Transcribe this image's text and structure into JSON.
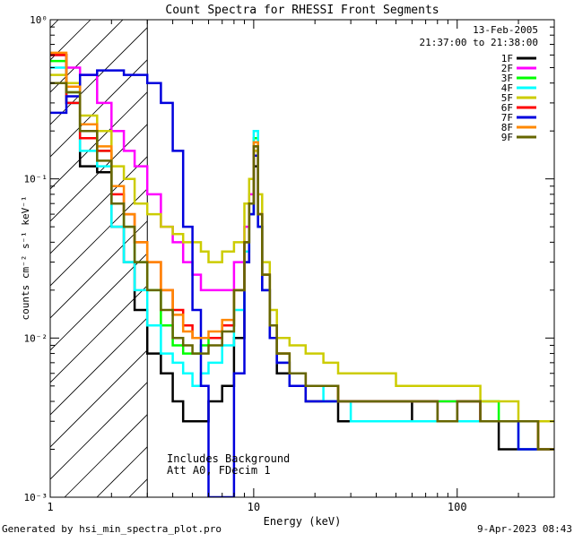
{
  "chart_data": {
    "type": "line",
    "title": "Count Spectra for RHESSI Front Segments",
    "xlabel": "Energy (keV)",
    "ylabel": "counts cm⁻² s⁻¹ keV⁻¹",
    "xscale": "log",
    "yscale": "log",
    "xlim": [
      1,
      300
    ],
    "ylim": [
      0.001,
      1.0
    ],
    "x_ticks": [
      {
        "value": 1,
        "label": "1"
      },
      {
        "value": 10,
        "label": "10"
      },
      {
        "value": 100,
        "label": "100"
      }
    ],
    "y_ticks": [
      {
        "value": 0.001,
        "label": "10⁻³"
      },
      {
        "value": 0.01,
        "label": "10⁻²"
      },
      {
        "value": 0.1,
        "label": "10⁻¹"
      },
      {
        "value": 1,
        "label": "10⁰"
      }
    ],
    "legend_position": "top-right",
    "date": "13-Feb-2005",
    "time_range": "21:37:00 to 21:38:00",
    "hatched_region_keV": [
      1,
      3
    ],
    "annotations": [
      "Includes Background",
      "Att A0, FDecim 1"
    ],
    "series": [
      {
        "name": "1F",
        "color": "#000000",
        "x": [
          1.0,
          1.2,
          1.4,
          1.7,
          2.0,
          2.3,
          2.6,
          3.0,
          3.5,
          4.0,
          4.5,
          5.0,
          5.5,
          6.0,
          7.0,
          8.0,
          9.0,
          9.5,
          10.0,
          10.5,
          11.0,
          12.0,
          13.0,
          15.0,
          18.0,
          22.0,
          26.0,
          30.0,
          40.0,
          50.0,
          60.0,
          80.0,
          100.0,
          130.0,
          160.0,
          200.0,
          250.0,
          300.0
        ],
        "y": [
          0.6,
          0.3,
          0.12,
          0.11,
          0.05,
          0.03,
          0.015,
          0.008,
          0.006,
          0.004,
          0.003,
          0.003,
          0.003,
          0.004,
          0.005,
          0.01,
          0.03,
          0.06,
          0.12,
          0.05,
          0.02,
          0.01,
          0.006,
          0.005,
          0.004,
          0.004,
          0.003,
          0.003,
          0.003,
          0.003,
          0.004,
          0.003,
          0.004,
          0.003,
          0.002,
          0.002,
          0.002,
          0.002
        ]
      },
      {
        "name": "2F",
        "color": "#ff00ff",
        "x": [
          1.0,
          1.2,
          1.4,
          1.7,
          2.0,
          2.3,
          2.6,
          3.0,
          3.5,
          4.0,
          4.5,
          5.0,
          5.5,
          6.0,
          7.0,
          8.0,
          9.0,
          9.5,
          10.0,
          10.5,
          11.0,
          12.0,
          13.0,
          15.0,
          18.0,
          22.0,
          26.0,
          30.0,
          40.0,
          50.0,
          60.0,
          80.0,
          100.0,
          130.0,
          160.0,
          200.0,
          250.0,
          300.0
        ],
        "y": [
          0.6,
          0.5,
          0.45,
          0.3,
          0.2,
          0.15,
          0.12,
          0.08,
          0.05,
          0.04,
          0.03,
          0.025,
          0.02,
          0.02,
          0.02,
          0.03,
          0.05,
          0.08,
          0.15,
          0.06,
          0.02,
          0.01,
          0.007,
          0.006,
          0.005,
          0.005,
          0.004,
          0.004,
          0.004,
          0.004,
          0.004,
          0.004,
          0.004,
          0.003,
          0.003,
          0.003,
          0.002,
          0.002
        ]
      },
      {
        "name": "3F",
        "color": "#00ff00",
        "x": [
          1.0,
          1.2,
          1.4,
          1.7,
          2.0,
          2.3,
          2.6,
          3.0,
          3.5,
          4.0,
          4.5,
          5.0,
          5.5,
          6.0,
          7.0,
          8.0,
          9.0,
          9.5,
          10.0,
          10.5,
          11.0,
          12.0,
          13.0,
          15.0,
          18.0,
          22.0,
          26.0,
          30.0,
          40.0,
          50.0,
          60.0,
          80.0,
          100.0,
          130.0,
          160.0,
          200.0,
          250.0,
          300.0
        ],
        "y": [
          0.55,
          0.35,
          0.2,
          0.15,
          0.07,
          0.05,
          0.03,
          0.02,
          0.012,
          0.009,
          0.008,
          0.008,
          0.009,
          0.01,
          0.012,
          0.02,
          0.04,
          0.07,
          0.18,
          0.06,
          0.025,
          0.012,
          0.008,
          0.006,
          0.005,
          0.005,
          0.004,
          0.004,
          0.004,
          0.004,
          0.004,
          0.004,
          0.004,
          0.004,
          0.003,
          0.003,
          0.002,
          0.002
        ]
      },
      {
        "name": "4F",
        "color": "#00ffff",
        "x": [
          1.0,
          1.2,
          1.4,
          1.7,
          2.0,
          2.3,
          2.6,
          3.0,
          3.5,
          4.0,
          4.5,
          5.0,
          5.5,
          6.0,
          7.0,
          8.0,
          9.0,
          9.5,
          10.0,
          10.5,
          11.0,
          12.0,
          13.0,
          15.0,
          18.0,
          22.0,
          26.0,
          30.0,
          40.0,
          50.0,
          60.0,
          80.0,
          100.0,
          130.0,
          160.0,
          200.0,
          250.0,
          300.0
        ],
        "y": [
          0.5,
          0.3,
          0.15,
          0.12,
          0.05,
          0.03,
          0.02,
          0.012,
          0.008,
          0.007,
          0.006,
          0.005,
          0.006,
          0.007,
          0.009,
          0.015,
          0.035,
          0.06,
          0.2,
          0.05,
          0.02,
          0.01,
          0.007,
          0.005,
          0.005,
          0.004,
          0.004,
          0.003,
          0.003,
          0.003,
          0.003,
          0.003,
          0.003,
          0.003,
          0.003,
          0.002,
          0.002,
          0.002
        ]
      },
      {
        "name": "5F",
        "color": "#cccc00",
        "x": [
          1.0,
          1.2,
          1.4,
          1.7,
          2.0,
          2.3,
          2.6,
          3.0,
          3.5,
          4.0,
          4.5,
          5.0,
          5.5,
          6.0,
          7.0,
          8.0,
          9.0,
          9.5,
          10.0,
          10.5,
          11.0,
          12.0,
          13.0,
          15.0,
          18.0,
          22.0,
          26.0,
          30.0,
          40.0,
          50.0,
          60.0,
          80.0,
          100.0,
          130.0,
          160.0,
          200.0,
          250.0,
          300.0
        ],
        "y": [
          0.45,
          0.4,
          0.25,
          0.2,
          0.12,
          0.1,
          0.07,
          0.06,
          0.05,
          0.045,
          0.04,
          0.04,
          0.035,
          0.03,
          0.035,
          0.04,
          0.07,
          0.1,
          0.15,
          0.08,
          0.03,
          0.015,
          0.01,
          0.009,
          0.008,
          0.007,
          0.006,
          0.006,
          0.006,
          0.005,
          0.005,
          0.005,
          0.005,
          0.004,
          0.004,
          0.003,
          0.003,
          0.003
        ]
      },
      {
        "name": "6F",
        "color": "#ff0000",
        "x": [
          1.0,
          1.2,
          1.4,
          1.7,
          2.0,
          2.3,
          2.6,
          3.0,
          3.5,
          4.0,
          4.5,
          5.0,
          5.5,
          6.0,
          7.0,
          8.0,
          9.0,
          9.5,
          10.0,
          10.5,
          11.0,
          12.0,
          13.0,
          15.0,
          18.0,
          22.0,
          26.0,
          30.0,
          40.0,
          50.0,
          60.0,
          80.0,
          100.0,
          130.0,
          160.0,
          200.0,
          250.0,
          300.0
        ],
        "y": [
          0.6,
          0.3,
          0.18,
          0.15,
          0.08,
          0.06,
          0.04,
          0.03,
          0.02,
          0.015,
          0.012,
          0.01,
          0.01,
          0.01,
          0.012,
          0.02,
          0.04,
          0.07,
          0.16,
          0.06,
          0.025,
          0.012,
          0.008,
          0.006,
          0.005,
          0.005,
          0.004,
          0.004,
          0.004,
          0.004,
          0.004,
          0.003,
          0.004,
          0.003,
          0.003,
          0.003,
          0.002,
          0.002
        ]
      },
      {
        "name": "7F",
        "color": "#0000dd",
        "x": [
          1.0,
          1.2,
          1.4,
          1.7,
          2.0,
          2.3,
          2.6,
          3.0,
          3.5,
          4.0,
          4.5,
          5.0,
          5.5,
          6.0,
          7.0,
          8.0,
          9.0,
          9.5,
          10.0,
          10.5,
          11.0,
          12.0,
          13.0,
          15.0,
          18.0,
          22.0,
          26.0,
          30.0,
          40.0,
          50.0,
          60.0,
          80.0,
          100.0,
          130.0,
          160.0,
          200.0,
          250.0,
          300.0
        ],
        "y": [
          0.26,
          0.33,
          0.45,
          0.48,
          0.48,
          0.45,
          0.45,
          0.4,
          0.3,
          0.15,
          0.05,
          0.015,
          0.005,
          0.001,
          0.001,
          0.006,
          0.03,
          0.06,
          0.14,
          0.05,
          0.02,
          0.01,
          0.007,
          0.005,
          0.004,
          0.004,
          0.004,
          0.004,
          0.004,
          0.004,
          0.004,
          0.003,
          0.004,
          0.003,
          0.003,
          0.002,
          0.002,
          0.002
        ]
      },
      {
        "name": "8F",
        "color": "#ff8800",
        "x": [
          1.0,
          1.2,
          1.4,
          1.7,
          2.0,
          2.3,
          2.6,
          3.0,
          3.5,
          4.0,
          4.5,
          5.0,
          5.5,
          6.0,
          7.0,
          8.0,
          9.0,
          9.5,
          10.0,
          10.5,
          11.0,
          12.0,
          13.0,
          15.0,
          18.0,
          22.0,
          26.0,
          30.0,
          40.0,
          50.0,
          60.0,
          80.0,
          100.0,
          130.0,
          160.0,
          200.0,
          250.0,
          300.0
        ],
        "y": [
          0.62,
          0.38,
          0.22,
          0.16,
          0.09,
          0.06,
          0.04,
          0.03,
          0.02,
          0.014,
          0.011,
          0.01,
          0.01,
          0.011,
          0.013,
          0.02,
          0.04,
          0.07,
          0.17,
          0.06,
          0.025,
          0.012,
          0.008,
          0.006,
          0.005,
          0.005,
          0.004,
          0.004,
          0.004,
          0.004,
          0.004,
          0.003,
          0.004,
          0.003,
          0.003,
          0.003,
          0.002,
          0.002
        ]
      },
      {
        "name": "9F",
        "color": "#666600",
        "x": [
          1.0,
          1.2,
          1.4,
          1.7,
          2.0,
          2.3,
          2.6,
          3.0,
          3.5,
          4.0,
          4.5,
          5.0,
          5.5,
          6.0,
          7.0,
          8.0,
          9.0,
          9.5,
          10.0,
          10.5,
          11.0,
          12.0,
          13.0,
          15.0,
          18.0,
          22.0,
          26.0,
          30.0,
          40.0,
          50.0,
          60.0,
          80.0,
          100.0,
          130.0,
          160.0,
          200.0,
          250.0,
          300.0
        ],
        "y": [
          0.4,
          0.35,
          0.2,
          0.13,
          0.07,
          0.05,
          0.03,
          0.02,
          0.015,
          0.01,
          0.009,
          0.008,
          0.008,
          0.009,
          0.011,
          0.02,
          0.04,
          0.07,
          0.16,
          0.06,
          0.025,
          0.012,
          0.008,
          0.006,
          0.005,
          0.005,
          0.004,
          0.004,
          0.004,
          0.004,
          0.004,
          0.003,
          0.004,
          0.003,
          0.003,
          0.003,
          0.002,
          0.002
        ]
      }
    ]
  },
  "footer": {
    "generated_by": "Generated by hsi_min_spectra_plot.pro",
    "timestamp": "9-Apr-2023 08:43"
  }
}
